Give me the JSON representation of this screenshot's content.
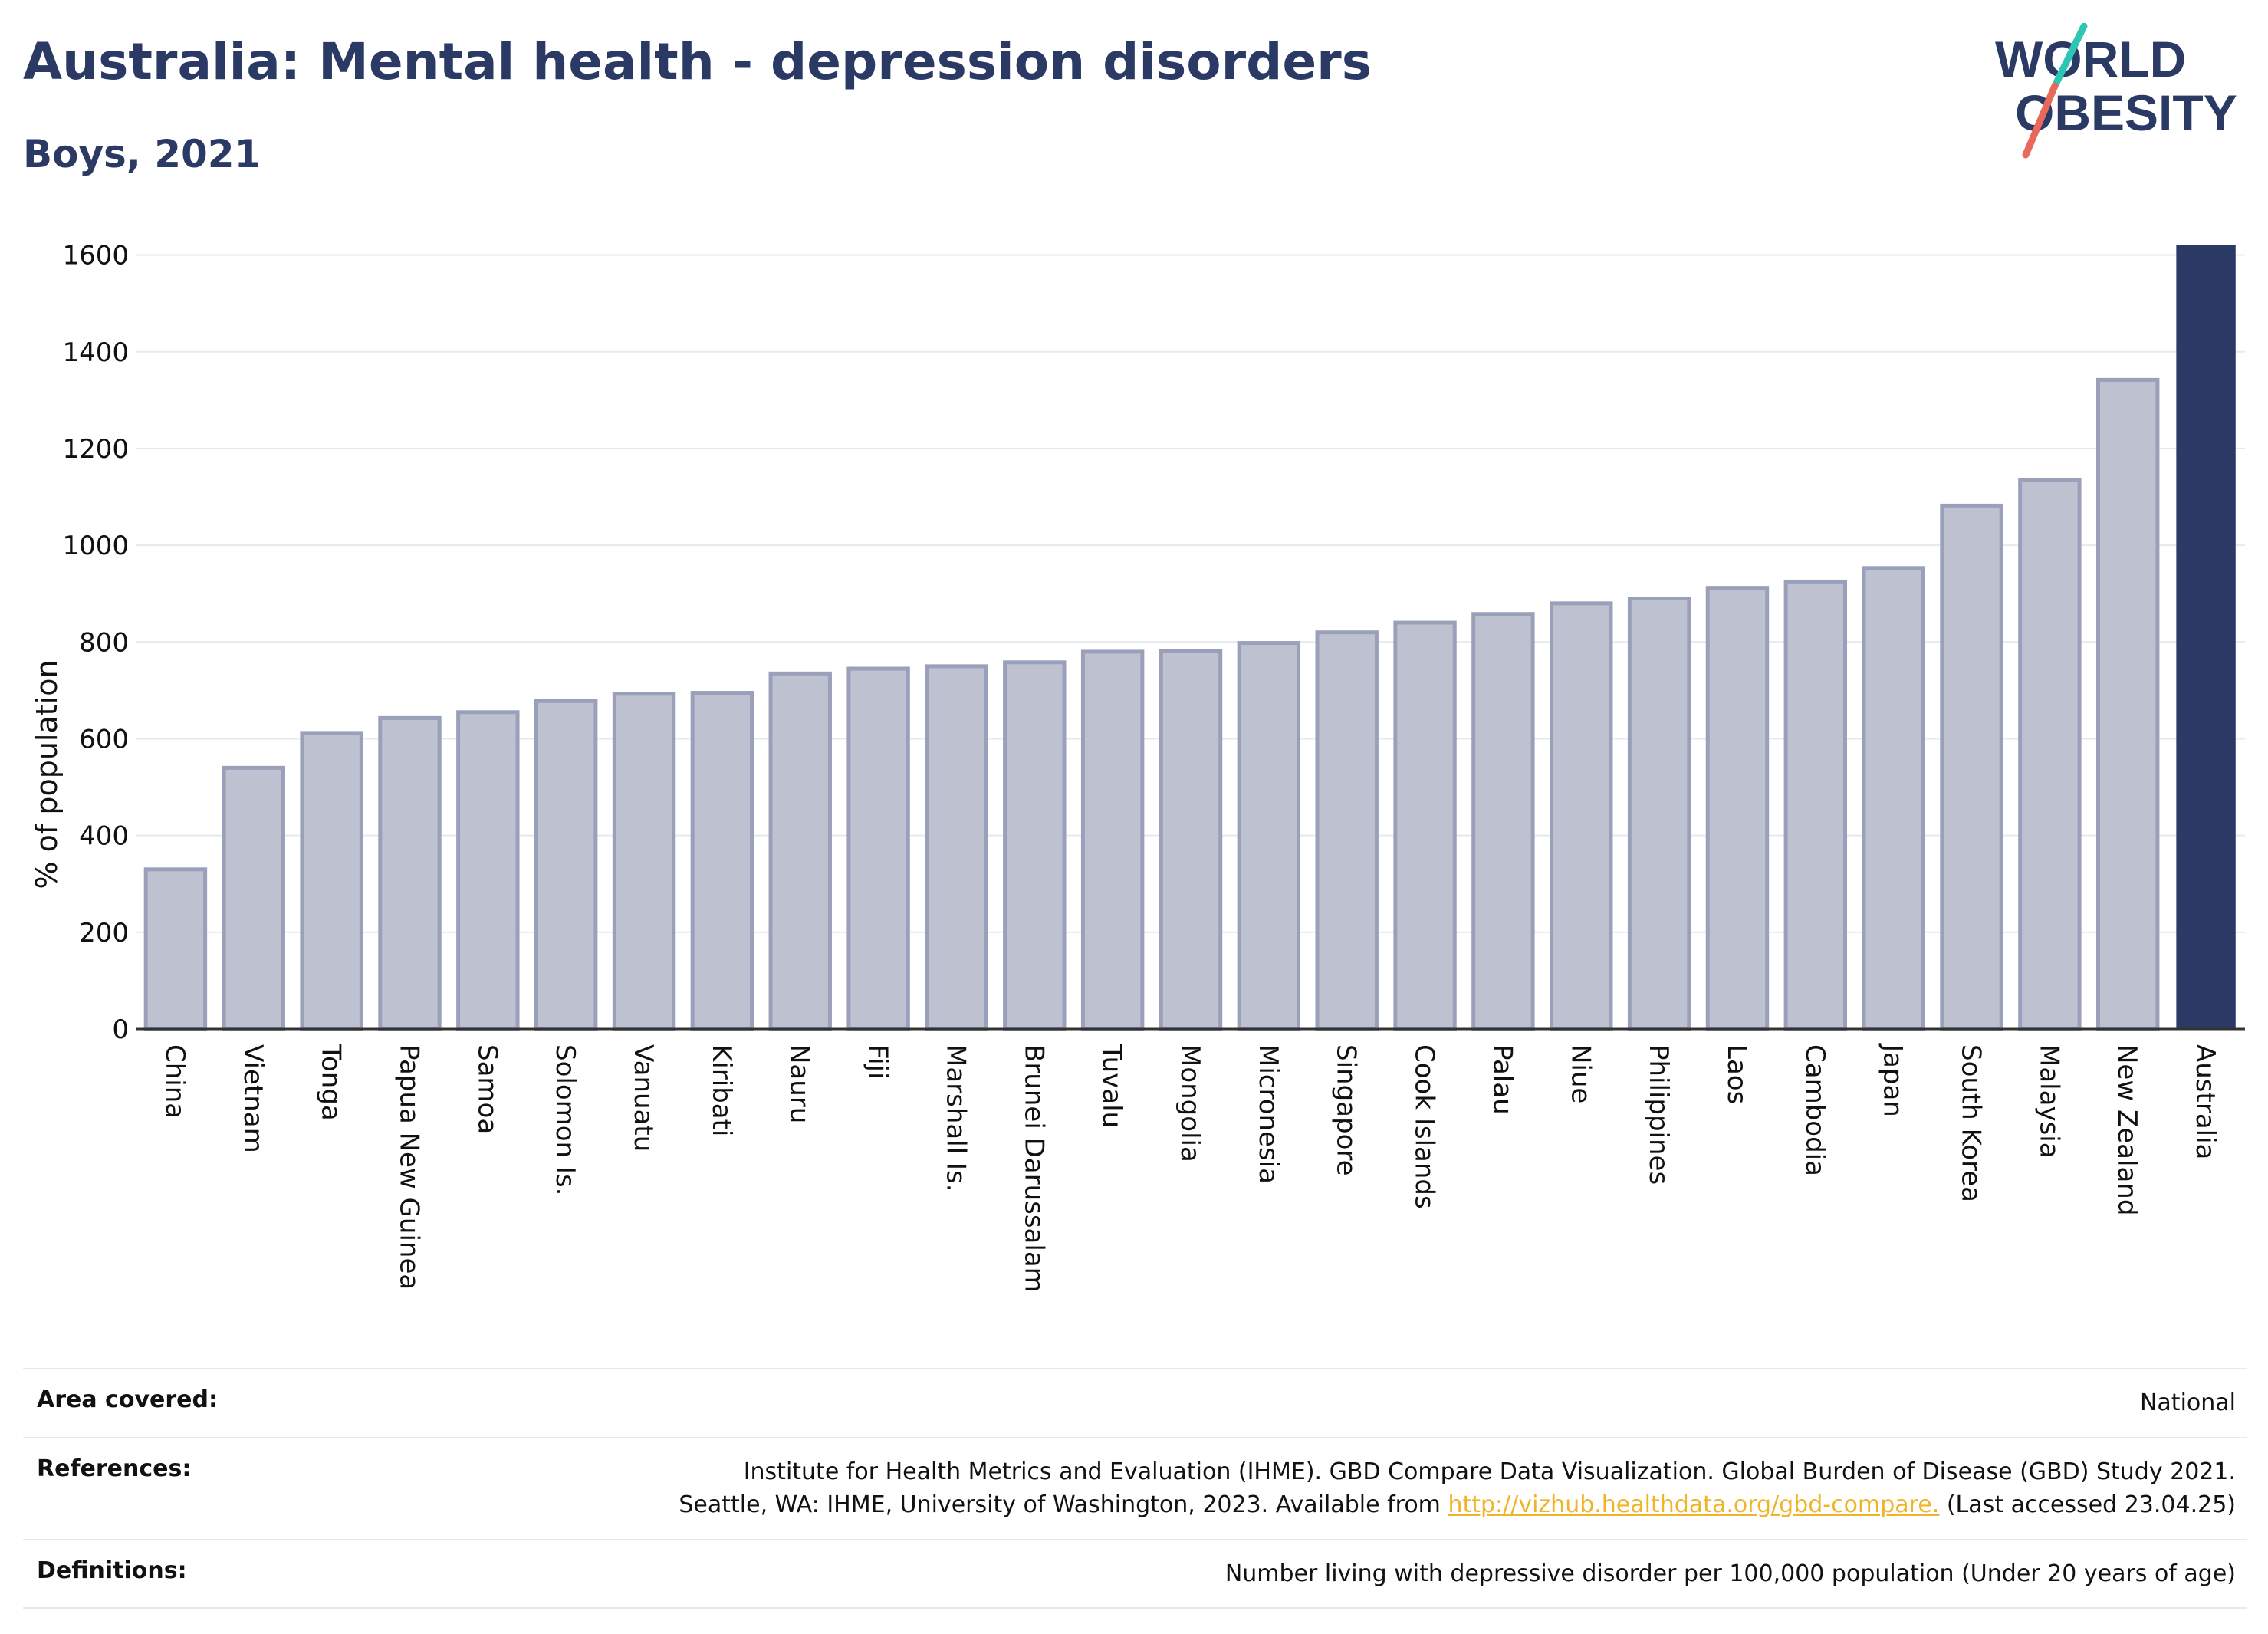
{
  "header": {
    "title": "Australia: Mental health - depression disorders",
    "subtitle": "Boys, 2021"
  },
  "logo": {
    "line1": "WORLD",
    "line2": "OBESITY",
    "icon": "slash-icon",
    "colors": {
      "text": "#2b3a64",
      "slash_top": "#2ec4b6",
      "slash_bottom": "#e8685a"
    }
  },
  "chart_data": {
    "type": "bar",
    "title": "Australia: Mental health - depression disorders",
    "subtitle": "Boys, 2021",
    "xlabel": "",
    "ylabel": "% of population",
    "ylim": [
      0,
      1620
    ],
    "yticks": [
      0,
      200,
      400,
      600,
      800,
      1000,
      1200,
      1400,
      1600
    ],
    "grid": true,
    "categories": [
      "China",
      "Vietnam",
      "Tonga",
      "Papua New Guinea",
      "Samoa",
      "Solomon Is.",
      "Vanuatu",
      "Kiribati",
      "Nauru",
      "Fiji",
      "Marshall Is.",
      "Brunei Darussalam",
      "Tuvalu",
      "Mongolia",
      "Micronesia",
      "Singapore",
      "Cook Islands",
      "Palau",
      "Niue",
      "Philippines",
      "Laos",
      "Cambodia",
      "Japan",
      "South Korea",
      "Malaysia",
      "New Zealand",
      "Australia"
    ],
    "values": [
      330,
      540,
      612,
      643,
      655,
      678,
      693,
      695,
      735,
      745,
      750,
      758,
      780,
      782,
      798,
      820,
      840,
      858,
      880,
      890,
      912,
      925,
      953,
      1082,
      1135,
      1342,
      1620
    ],
    "highlight": "Australia",
    "colors": {
      "bar": "#bec2d0",
      "bar_edge": "#9aa0ba",
      "highlight": "#2b3a64"
    }
  },
  "info": {
    "area_label": "Area covered:",
    "area_value": "National",
    "references_label": "References:",
    "references_line1": "Institute for Health Metrics and Evaluation (IHME). GBD Compare Data Visualization. Global Burden of Disease (GBD) Study 2021.",
    "references_line2_prefix": "Seattle, WA: IHME, University of Washington, 2023. Available from ",
    "references_link": "http://vizhub.healthdata.org/gbd-compare.",
    "references_line2_suffix": " (Last accessed 23.04.25)",
    "definitions_label": "Definitions:",
    "definitions_value": "Number living with depressive disorder per 100,000 population (Under 20 years of age)"
  }
}
